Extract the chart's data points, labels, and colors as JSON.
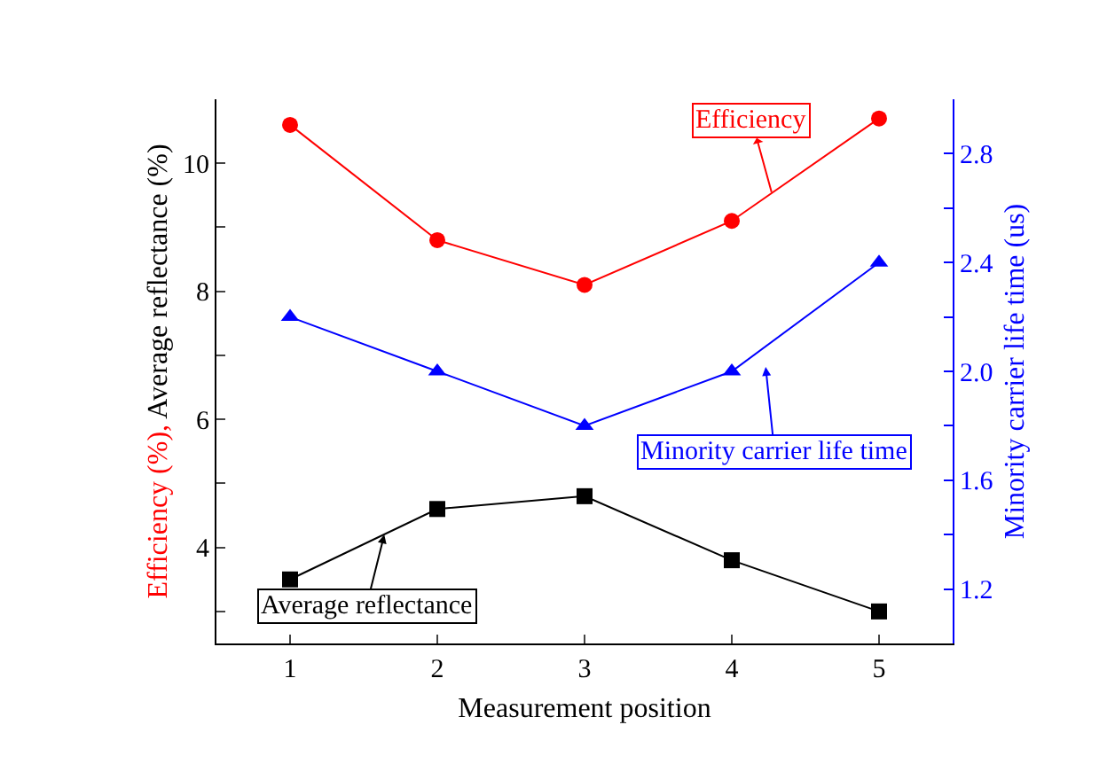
{
  "chart_data": {
    "type": "line",
    "xlabel": "Measurement position",
    "ylabel": "Efficiency (%), Average reflectance (%)",
    "y2label": "Minority carrier life time (us)",
    "x": [
      1,
      2,
      3,
      4,
      5
    ],
    "xlim": [
      0.5,
      5.5
    ],
    "xticks": [
      1,
      2,
      3,
      4,
      5
    ],
    "ylim": [
      2.5,
      11
    ],
    "yticks": [
      {
        "value": 3,
        "label": null
      },
      4,
      {
        "value": 5,
        "label": null
      },
      6,
      {
        "value": 7,
        "label": null
      },
      8,
      {
        "value": 9,
        "label": null
      },
      10
    ],
    "y2lim": [
      1.0,
      3.0
    ],
    "y2ticks": [
      {
        "value": 1.0,
        "label": null
      },
      {
        "value": 1.2,
        "label": "1.2"
      },
      {
        "value": 1.4,
        "label": null
      },
      {
        "value": 1.6,
        "label": "1.6"
      },
      {
        "value": 1.8,
        "label": null
      },
      {
        "value": 2.0,
        "label": "2.0"
      },
      {
        "value": 2.2,
        "label": null
      },
      {
        "value": 2.4,
        "label": "2.4"
      },
      {
        "value": 2.6,
        "label": null
      },
      {
        "value": 2.8,
        "label": "2.8"
      }
    ],
    "series": [
      {
        "color": "#ff0000",
        "marker": "circle",
        "values": [
          10.6,
          8.8,
          8.1,
          9.1,
          10.7
        ]
      },
      {
        "color": "#0000ff",
        "marker": "triangle",
        "axis": "y2",
        "values": [
          2.2,
          2.0,
          1.8,
          2.0,
          2.4
        ]
      },
      {
        "color": "#000000",
        "marker": "square",
        "values": [
          3.5,
          4.6,
          4.8,
          3.8,
          3.0
        ]
      }
    ],
    "annotations": [
      {
        "text": "Efficiency",
        "x": 4.27,
        "y": 9.55
      },
      "Minority carrier life time",
      {
        "text": "Average reflectance",
        "x": 1.64,
        "y": 4.2
      }
    ],
    "line_style": "solid"
  }
}
